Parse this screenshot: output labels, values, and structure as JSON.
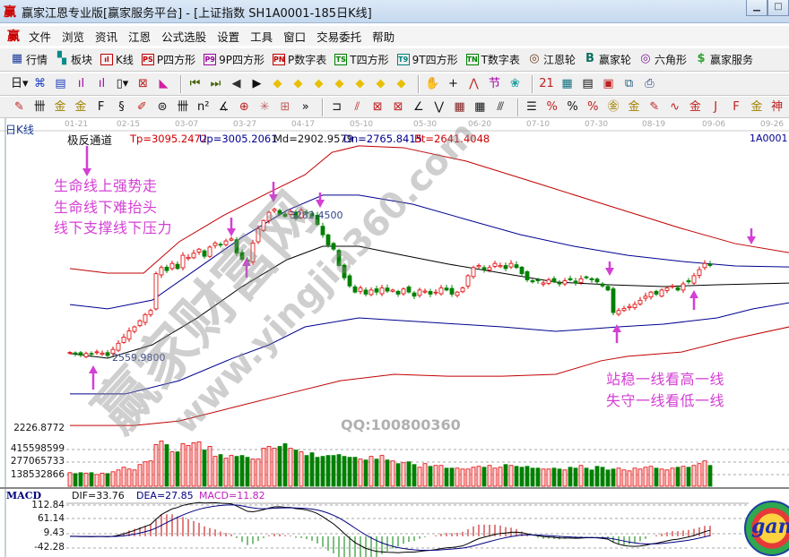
{
  "window": {
    "title": "赢家江恩专业版[赢家服务平台] - [上证指数  SH1A0001-185日K线]",
    "app_icon": "赢",
    "buttons": [
      "minimize",
      "maximize"
    ]
  },
  "menu": [
    "文件",
    "浏览",
    "资讯",
    "江恩",
    "公式选股",
    "设置",
    "工具",
    "窗口",
    "交易委托",
    "帮助"
  ],
  "toolbar1": [
    {
      "label": "行情",
      "icon": "quote-table-icon",
      "glyph": "▦",
      "color": "#1c3a9a"
    },
    {
      "label": "板块",
      "icon": "sector-blocks-icon",
      "glyph": "▚",
      "color": "#0a8a8a"
    },
    {
      "label": "K线",
      "icon": "kline-icon",
      "glyph": "ıl",
      "color": "#c00000"
    },
    {
      "label": "P四方形",
      "icon": "ps-icon",
      "glyph": "PS",
      "color": "#c00000"
    },
    {
      "label": "9P四方形",
      "icon": "p9-icon",
      "glyph": "P9",
      "color": "#a000a0"
    },
    {
      "label": "P数字表",
      "icon": "pn-icon",
      "glyph": "PN",
      "color": "#c00000"
    },
    {
      "label": "T四方形",
      "icon": "ts-icon",
      "glyph": "TS",
      "color": "#008000"
    },
    {
      "label": "9T四方形",
      "icon": "t9-icon",
      "glyph": "T9",
      "color": "#008080"
    },
    {
      "label": "T数字表",
      "icon": "tn-icon",
      "glyph": "TN",
      "color": "#008000"
    },
    {
      "label": "江恩轮",
      "icon": "gann-wheel-icon",
      "glyph": "◎",
      "color": "#704020"
    },
    {
      "label": "赢家轮",
      "icon": "big-wheel-icon",
      "glyph": "B",
      "color": "#107060"
    },
    {
      "label": "六角形",
      "icon": "hexagon-icon",
      "glyph": "◎",
      "color": "#8020a0"
    },
    {
      "label": "赢家服务",
      "icon": "dollar-icon",
      "glyph": "$",
      "color": "#30a030"
    }
  ],
  "toolbar2": [
    {
      "name": "period-day-dropdown",
      "glyph": "日▾",
      "color": "#111"
    },
    {
      "name": "link-icon",
      "glyph": "⌘",
      "color": "#2040c0"
    },
    {
      "name": "page-icon",
      "glyph": "▤",
      "color": "#2040c0"
    },
    {
      "name": "bars3-icon",
      "glyph": "ıl",
      "color": "#a000a0"
    },
    {
      "name": "bars9-icon",
      "glyph": "ıl",
      "color": "#a000a0"
    },
    {
      "name": "candle-type-dropdown",
      "glyph": "▯▾",
      "color": "#111"
    },
    {
      "name": "draw-tool-icon",
      "glyph": "⊠",
      "color": "#c02020"
    },
    {
      "name": "flag-icon",
      "glyph": "◣",
      "color": "#d020a0"
    },
    {
      "sep": true
    },
    {
      "name": "first-icon",
      "glyph": "⏮",
      "color": "#406000"
    },
    {
      "name": "last-icon",
      "glyph": "⏭",
      "color": "#406000"
    },
    {
      "name": "left-arrow-icon",
      "glyph": "◀",
      "color": "#333"
    },
    {
      "name": "right-arrow-icon",
      "glyph": "▶",
      "color": "#111"
    },
    {
      "name": "diamond-left-icon",
      "glyph": "◆",
      "color": "#e8c000"
    },
    {
      "name": "diamond-right-icon",
      "glyph": "◆",
      "color": "#e8c000"
    },
    {
      "name": "diamond-h-expand-icon",
      "glyph": "◆",
      "color": "#e8c000"
    },
    {
      "name": "diamond-h-shrink-icon",
      "glyph": "◆",
      "color": "#e8c000"
    },
    {
      "name": "diamond-v-expand-icon",
      "glyph": "◆",
      "color": "#e8c000"
    },
    {
      "name": "diamond-v-shrink-icon",
      "glyph": "◆",
      "color": "#e8c000"
    },
    {
      "name": "diamond-reset-icon",
      "glyph": "◆",
      "color": "#e8c000"
    },
    {
      "sep": true
    },
    {
      "name": "hand-icon",
      "glyph": "✋",
      "color": "#111"
    },
    {
      "name": "crosshair-icon",
      "glyph": "+",
      "color": "#111"
    },
    {
      "name": "line-chart-icon",
      "glyph": "⋀",
      "color": "#c02020"
    },
    {
      "name": "node-icon",
      "glyph": "节",
      "color": "#a000a0"
    },
    {
      "name": "leaf-icon",
      "glyph": "❀",
      "color": "#20a0a0"
    },
    {
      "sep": true
    },
    {
      "name": "calendar-icon",
      "glyph": "21",
      "color": "#c02020"
    },
    {
      "name": "calculator-icon",
      "glyph": "▦",
      "color": "#107080"
    },
    {
      "name": "notebook-icon",
      "glyph": "▤",
      "color": "#111"
    },
    {
      "name": "save-icon",
      "glyph": "▣",
      "color": "#c02020"
    },
    {
      "name": "network-icon",
      "glyph": "⧉",
      "color": "#206080"
    },
    {
      "name": "print-icon",
      "glyph": "⎙",
      "color": "#204080"
    }
  ],
  "toolbar3": [
    {
      "name": "pen-icon",
      "glyph": "✎",
      "color": "#c02020"
    },
    {
      "name": "grid-lines-icon",
      "glyph": "卌",
      "color": "#111"
    },
    {
      "name": "gold-ratio-icon",
      "glyph": "金",
      "color": "#a08000"
    },
    {
      "name": "gold-ratio2-icon",
      "glyph": "金",
      "color": "#a08000"
    },
    {
      "name": "fib-icon",
      "glyph": "F",
      "color": "#111"
    },
    {
      "name": "spiral-icon",
      "glyph": "§",
      "color": "#111"
    },
    {
      "name": "pencil-ruler-icon",
      "glyph": "✐",
      "color": "#c02020"
    },
    {
      "name": "circle-ruler-icon",
      "glyph": "⊜",
      "color": "#111"
    },
    {
      "name": "cycle-lines-icon",
      "glyph": "卌",
      "color": "#111"
    },
    {
      "name": "n2-icon",
      "glyph": "n²",
      "color": "#111"
    },
    {
      "name": "angle-icon",
      "glyph": "∡",
      "color": "#111"
    },
    {
      "name": "target-icon",
      "glyph": "⊕",
      "color": "#c02020"
    },
    {
      "name": "star-icon",
      "glyph": "✳",
      "color": "#c06060"
    },
    {
      "name": "square-target-icon",
      "glyph": "⊞",
      "color": "#c06060"
    },
    {
      "name": "more-icon",
      "glyph": "»",
      "color": "#111"
    },
    {
      "sep": true
    },
    {
      "name": "box-icon",
      "glyph": "⊐",
      "color": "#111"
    },
    {
      "name": "fan-icon",
      "glyph": "⫽",
      "color": "#c02020"
    },
    {
      "name": "fan-box-icon",
      "glyph": "⊠",
      "color": "#c02020"
    },
    {
      "name": "fan-box2-icon",
      "glyph": "⊠",
      "color": "#c02020"
    },
    {
      "name": "angle-lines-icon",
      "glyph": "∠",
      "color": "#111"
    },
    {
      "name": "v-lines-icon",
      "glyph": "⋁",
      "color": "#111"
    },
    {
      "name": "grid-icon",
      "glyph": "▦",
      "color": "#802020"
    },
    {
      "name": "grid2-icon",
      "glyph": "▦",
      "color": "#111"
    },
    {
      "name": "parallel-icon",
      "glyph": "⫻",
      "color": "#111"
    },
    {
      "sep": true
    },
    {
      "name": "ladder-icon",
      "glyph": "☰",
      "color": "#111"
    },
    {
      "name": "percent-line-icon",
      "glyph": "%",
      "color": "#c02020"
    },
    {
      "name": "percent-icon",
      "glyph": "%",
      "color": "#111"
    },
    {
      "name": "percent-lines-icon",
      "glyph": "%",
      "color": "#c02020"
    },
    {
      "name": "gold-circle-icon",
      "glyph": "㊎",
      "color": "#a08000"
    },
    {
      "name": "gold-lines-icon",
      "glyph": "金",
      "color": "#a08000"
    },
    {
      "name": "pen-tool-icon",
      "glyph": "✎",
      "color": "#c02020"
    },
    {
      "name": "wave-icon",
      "glyph": "∿",
      "color": "#c02020"
    },
    {
      "name": "gold-box-icon",
      "glyph": "金",
      "color": "#c02020"
    },
    {
      "name": "j-angle-icon",
      "glyph": "J",
      "color": "#c02020"
    },
    {
      "name": "f-angle-icon",
      "glyph": "F",
      "color": "#c02020"
    },
    {
      "name": "gold-angle-icon",
      "glyph": "金",
      "color": "#a08000"
    },
    {
      "name": "god-icon",
      "glyph": "神",
      "color": "#c02020"
    }
  ],
  "chart": {
    "period_label": "日K线",
    "dates": [
      "01-21",
      "02-15",
      "03-07",
      "03-27",
      "04-17",
      "05-10",
      "05-30",
      "06-20",
      "07-10",
      "07-30",
      "08-19",
      "09-06",
      "09-26"
    ],
    "indicator": {
      "name": "极反通道",
      "tp": "Tp=3095.2472",
      "up": "Up=3005.2061",
      "md": "Md=2902.9579",
      "dn": "Dn=2765.8415",
      "bt": "Bt=2641.4048"
    },
    "symbol": "1A0001",
    "high_label": "3282.4500",
    "low_label": "2559.9800",
    "price_axis_label": "2226.8772",
    "volume_axis": [
      "415598599",
      "277065733",
      "138532866"
    ],
    "macd": {
      "title": "MACD",
      "dif": "DIF=33.76",
      "dea": "DEA=27.85",
      "macd": "MACD=11.82",
      "axis": [
        "112.84",
        "61.14",
        "9.43",
        "-42.28"
      ]
    },
    "colors": {
      "up": "#e00000",
      "down": "#008000",
      "tp": "#c00000",
      "up_band": "#000090",
      "md": "#000000",
      "dn": "#000090",
      "bt": "#c00000",
      "annotation": "#d43fd4",
      "dif": "#000000",
      "dea": "#000080"
    },
    "closes": [
      2575,
      2568,
      2562,
      2570,
      2566,
      2578,
      2572,
      2560,
      2590,
      2620,
      2650,
      2680,
      2700,
      2730,
      2760,
      2780,
      2960,
      2990,
      2975,
      3010,
      2985,
      3050,
      3040,
      3060,
      3080,
      3045,
      3090,
      3110,
      3100,
      3120,
      3130,
      3060,
      3030,
      3020,
      3110,
      3180,
      3220,
      3260,
      3275,
      3250,
      3240,
      3265,
      3230,
      3270,
      3255,
      3240,
      3200,
      3150,
      3100,
      3080,
      3000,
      2940,
      2900,
      2870,
      2890,
      2860,
      2880,
      2870,
      2890,
      2875,
      2880,
      2860,
      2885,
      2870,
      2850,
      2880,
      2875,
      2860,
      2870,
      2890,
      2880,
      2860,
      2870,
      2890,
      2950,
      2990,
      3000,
      2980,
      2990,
      3010,
      3000,
      2985,
      3010,
      2990,
      2960,
      2930,
      2920,
      2925,
      2915,
      2930,
      2920,
      2910,
      2925,
      2930,
      2915,
      2935,
      2940,
      2930,
      2920,
      2900,
      2880,
      2770,
      2780,
      2790,
      2800,
      2810,
      2830,
      2850,
      2870,
      2860,
      2880,
      2890,
      2900,
      2880,
      2910,
      2920,
      2950,
      2980,
      3010,
      3000
    ],
    "volumes_million": [
      150,
      140,
      150,
      145,
      150,
      130,
      145,
      140,
      160,
      180,
      210,
      190,
      180,
      240,
      270,
      280,
      460,
      500,
      460,
      380,
      380,
      470,
      450,
      480,
      490,
      400,
      440,
      330,
      350,
      310,
      340,
      330,
      340,
      320,
      300,
      300,
      420,
      440,
      420,
      440,
      470,
      420,
      400,
      380,
      340,
      370,
      320,
      330,
      340,
      340,
      350,
      330,
      320,
      320,
      300,
      290,
      330,
      300,
      340,
      290,
      280,
      250,
      260,
      270,
      240,
      210,
      250,
      220,
      230,
      230,
      200,
      200,
      200,
      190,
      190,
      210,
      220,
      210,
      230,
      200,
      210,
      240,
      230,
      220,
      210,
      220,
      200,
      200,
      190,
      190,
      200,
      190,
      180,
      210,
      200,
      230,
      200,
      180,
      220,
      210,
      180,
      190,
      200,
      180,
      170,
      200,
      190,
      210,
      220,
      200,
      190,
      180,
      200,
      210,
      220,
      210,
      230,
      250,
      280,
      230
    ],
    "bands": {
      "tp": [
        [
          0,
          2985
        ],
        [
          7,
          2963
        ],
        [
          13.7,
          2963
        ],
        [
          20.3,
          3116
        ],
        [
          28.7,
          3247
        ],
        [
          37,
          3357
        ],
        [
          43.7,
          3444
        ],
        [
          48.7,
          3553
        ],
        [
          53.7,
          3585
        ],
        [
          62,
          3576
        ],
        [
          73.7,
          3510
        ],
        [
          87,
          3401
        ],
        [
          100.3,
          3291
        ],
        [
          113.7,
          3181
        ],
        [
          123.7,
          3107
        ],
        [
          133.7,
          3063
        ]
      ],
      "up": [
        [
          0,
          2809
        ],
        [
          7,
          2788
        ],
        [
          15.3,
          2831
        ],
        [
          23.7,
          2985
        ],
        [
          32,
          3138
        ],
        [
          40.3,
          3269
        ],
        [
          47,
          3344
        ],
        [
          53.7,
          3344
        ],
        [
          63.7,
          3300
        ],
        [
          73.7,
          3225
        ],
        [
          83.7,
          3151
        ],
        [
          93.7,
          3094
        ],
        [
          103.7,
          3050
        ],
        [
          113.7,
          3020
        ],
        [
          123.7,
          2998
        ],
        [
          133.7,
          2993
        ]
      ],
      "md": [
        [
          0,
          2570
        ],
        [
          7,
          2547
        ],
        [
          15.3,
          2612
        ],
        [
          23.7,
          2744
        ],
        [
          32,
          2897
        ],
        [
          40.3,
          3028
        ],
        [
          47,
          3094
        ],
        [
          53.7,
          3094
        ],
        [
          62,
          3050
        ],
        [
          70.3,
          3007
        ],
        [
          80.3,
          2963
        ],
        [
          90.3,
          2919
        ],
        [
          100.3,
          2906
        ],
        [
          110.3,
          2897
        ],
        [
          120.3,
          2906
        ],
        [
          133.7,
          2914
        ]
      ],
      "dn": [
        [
          0,
          2372
        ],
        [
          10.3,
          2372
        ],
        [
          20.3,
          2437
        ],
        [
          30.3,
          2547
        ],
        [
          37,
          2612
        ],
        [
          43.7,
          2700
        ],
        [
          53.7,
          2744
        ],
        [
          67,
          2722
        ],
        [
          80.3,
          2700
        ],
        [
          90.3,
          2678
        ],
        [
          102,
          2700
        ],
        [
          110.3,
          2713
        ],
        [
          120.3,
          2744
        ],
        [
          127,
          2788
        ],
        [
          133.7,
          2818
        ]
      ],
      "bt": [
        [
          0,
          2218
        ],
        [
          12,
          2218
        ],
        [
          20.3,
          2240
        ],
        [
          30.3,
          2306
        ],
        [
          40.3,
          2372
        ],
        [
          50.3,
          2437
        ],
        [
          60.3,
          2468
        ],
        [
          70.3,
          2459
        ],
        [
          80.3,
          2459
        ],
        [
          90.3,
          2468
        ],
        [
          98.7,
          2534
        ],
        [
          103.7,
          2556
        ],
        [
          113.7,
          2577
        ],
        [
          123.7,
          2643
        ],
        [
          133.7,
          2700
        ]
      ]
    },
    "annotations_left": [
      "生命线上强势走",
      "生命线下难抬头",
      "线下支撑线下压力"
    ],
    "annotations_right": [
      "站稳一线看高一线",
      "失守一线看低一线"
    ]
  },
  "watermark": {
    "site_name": "赢家财富网",
    "url": "www.yingjia360.com",
    "qq": "QQ:100800360",
    "logo_text": "gan"
  }
}
